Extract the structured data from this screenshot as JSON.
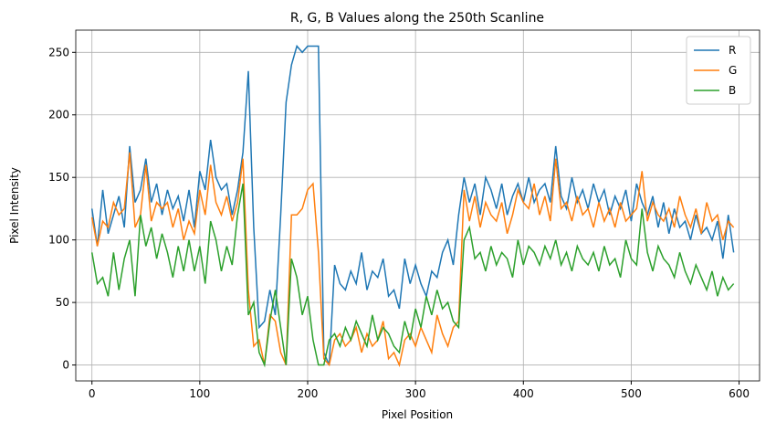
{
  "chart_data": {
    "type": "line",
    "title": "R, G, B Values along the 250th Scanline",
    "xlabel": "Pixel Position",
    "ylabel": "Pixel Intensity",
    "x": [
      0,
      5,
      10,
      15,
      20,
      25,
      30,
      35,
      40,
      45,
      50,
      55,
      60,
      65,
      70,
      75,
      80,
      85,
      90,
      95,
      100,
      105,
      110,
      115,
      120,
      125,
      130,
      135,
      140,
      145,
      150,
      155,
      160,
      165,
      170,
      175,
      180,
      185,
      190,
      195,
      200,
      205,
      210,
      215,
      220,
      225,
      230,
      235,
      240,
      245,
      250,
      255,
      260,
      265,
      270,
      275,
      280,
      285,
      290,
      295,
      300,
      305,
      310,
      315,
      320,
      325,
      330,
      335,
      340,
      345,
      350,
      355,
      360,
      365,
      370,
      375,
      380,
      385,
      390,
      395,
      400,
      405,
      410,
      415,
      420,
      425,
      430,
      435,
      440,
      445,
      450,
      455,
      460,
      465,
      470,
      475,
      480,
      485,
      490,
      495,
      500,
      505,
      510,
      515,
      520,
      525,
      530,
      535,
      540,
      545,
      550,
      555,
      560,
      565,
      570,
      575,
      580,
      585,
      590,
      595
    ],
    "series": [
      {
        "name": "R",
        "color": "#1f77b4",
        "values": [
          125,
          95,
          140,
          105,
          120,
          135,
          110,
          175,
          130,
          140,
          165,
          130,
          145,
          120,
          140,
          125,
          135,
          115,
          140,
          110,
          155,
          140,
          180,
          150,
          140,
          145,
          120,
          140,
          170,
          235,
          110,
          30,
          35,
          60,
          40,
          120,
          210,
          240,
          255,
          250,
          255,
          255,
          255,
          10,
          0,
          80,
          65,
          60,
          75,
          65,
          90,
          60,
          75,
          70,
          85,
          55,
          60,
          45,
          85,
          65,
          80,
          65,
          55,
          75,
          70,
          90,
          100,
          80,
          120,
          150,
          130,
          145,
          120,
          150,
          140,
          125,
          145,
          120,
          135,
          145,
          130,
          150,
          130,
          140,
          145,
          130,
          175,
          135,
          125,
          150,
          130,
          140,
          125,
          145,
          130,
          140,
          120,
          135,
          125,
          140,
          115,
          145,
          130,
          120,
          135,
          110,
          130,
          105,
          125,
          110,
          115,
          100,
          120,
          105,
          110,
          100,
          115,
          85,
          120,
          90
        ]
      },
      {
        "name": "G",
        "color": "#ff7f0e",
        "values": [
          118,
          95,
          115,
          110,
          130,
          120,
          125,
          170,
          110,
          120,
          160,
          115,
          130,
          125,
          130,
          110,
          125,
          100,
          115,
          105,
          140,
          120,
          160,
          130,
          120,
          135,
          115,
          130,
          165,
          60,
          15,
          20,
          0,
          40,
          35,
          10,
          0,
          120,
          120,
          125,
          140,
          145,
          90,
          5,
          0,
          20,
          25,
          15,
          20,
          30,
          10,
          25,
          15,
          20,
          35,
          5,
          10,
          0,
          20,
          25,
          15,
          30,
          20,
          10,
          40,
          25,
          15,
          30,
          35,
          140,
          115,
          135,
          110,
          130,
          120,
          115,
          130,
          105,
          120,
          140,
          130,
          125,
          145,
          120,
          135,
          115,
          165,
          125,
          130,
          115,
          135,
          120,
          125,
          110,
          130,
          115,
          125,
          110,
          130,
          115,
          120,
          125,
          155,
          115,
          130,
          120,
          115,
          125,
          110,
          135,
          120,
          110,
          125,
          105,
          130,
          115,
          120,
          100,
          115,
          110
        ]
      },
      {
        "name": "B",
        "color": "#2ca02c",
        "values": [
          90,
          65,
          70,
          55,
          90,
          60,
          85,
          100,
          55,
          120,
          95,
          110,
          85,
          105,
          90,
          70,
          95,
          75,
          100,
          75,
          95,
          65,
          115,
          100,
          75,
          95,
          80,
          120,
          145,
          40,
          50,
          10,
          0,
          35,
          60,
          30,
          0,
          85,
          70,
          40,
          55,
          20,
          0,
          0,
          20,
          25,
          15,
          30,
          20,
          35,
          25,
          15,
          40,
          20,
          30,
          25,
          15,
          10,
          35,
          20,
          45,
          30,
          55,
          40,
          60,
          45,
          50,
          35,
          30,
          100,
          110,
          85,
          90,
          75,
          95,
          80,
          90,
          85,
          70,
          100,
          80,
          95,
          90,
          80,
          95,
          85,
          100,
          80,
          90,
          75,
          95,
          85,
          80,
          90,
          75,
          95,
          80,
          85,
          70,
          100,
          85,
          80,
          125,
          90,
          75,
          95,
          85,
          80,
          70,
          90,
          75,
          65,
          80,
          70,
          60,
          75,
          55,
          70,
          60,
          65
        ]
      }
    ],
    "xlim": [
      -15,
      619
    ],
    "ylim": [
      -12.75,
      267.75
    ],
    "xticks": [
      0,
      100,
      200,
      300,
      400,
      500,
      600
    ],
    "yticks": [
      0,
      50,
      100,
      150,
      200,
      250
    ],
    "grid": true,
    "legend": "upper-right"
  }
}
